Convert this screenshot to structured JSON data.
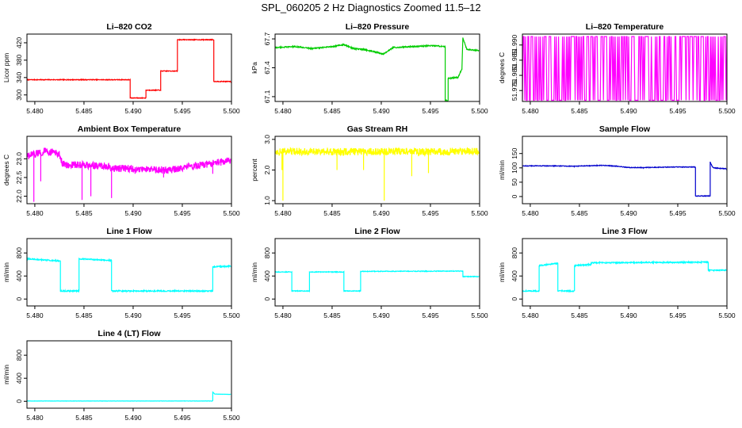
{
  "figure_title": "SPL_060205  2 Hz Diagnostics Zoomed 11.5–12",
  "chart_data": [
    {
      "type": "line",
      "title": "Li–820 CO2",
      "ylabel": "Licor ppm",
      "color": "#ff0000",
      "xlim": [
        5.4792,
        5.5
      ],
      "ylim": [
        285,
        440
      ],
      "xticks": [
        5.48,
        5.485,
        5.49,
        5.495,
        5.5
      ],
      "xtick_labels": [
        "5.480",
        "5.485",
        "5.490",
        "5.495",
        "5.500"
      ],
      "yticks": [
        300,
        340,
        380,
        420
      ],
      "ytick_labels": [
        "300",
        "340",
        "380",
        "420"
      ],
      "noise": 0.8,
      "x": [
        5.4792,
        5.4897,
        5.4897,
        5.4913,
        5.4913,
        5.4928,
        5.4928,
        5.4945,
        5.4945,
        5.4982,
        5.4982,
        5.4999
      ],
      "y": [
        335,
        335,
        293,
        293,
        311,
        311,
        355,
        355,
        427,
        427,
        331,
        331
      ]
    },
    {
      "type": "line",
      "title": "Li–820 Pressure",
      "ylabel": "kPa",
      "color": "#00cc00",
      "xlim": [
        5.4792,
        5.5
      ],
      "ylim": [
        67.05,
        67.75
      ],
      "xticks": [
        5.48,
        5.485,
        5.49,
        5.495,
        5.5
      ],
      "xtick_labels": [
        "5.480",
        "5.485",
        "5.490",
        "5.495",
        "5.500"
      ],
      "yticks": [
        67.1,
        67.4,
        67.7
      ],
      "ytick_labels": [
        "67.1",
        "67.4",
        "67.7"
      ],
      "noise": 0.006,
      "x": [
        5.4792,
        5.4812,
        5.483,
        5.485,
        5.4862,
        5.4872,
        5.4882,
        5.4892,
        5.4902,
        5.4912,
        5.4932,
        5.4952,
        5.4965,
        5.4965,
        5.4968,
        5.4968,
        5.4978,
        5.4982,
        5.4983,
        5.4987,
        5.4999
      ],
      "y": [
        67.61,
        67.62,
        67.6,
        67.62,
        67.64,
        67.6,
        67.59,
        67.57,
        67.54,
        67.61,
        67.62,
        67.63,
        67.62,
        67.06,
        67.06,
        67.29,
        67.3,
        67.39,
        67.71,
        67.59,
        67.58
      ]
    },
    {
      "type": "line",
      "title": "Li–820 Temperature",
      "ylabel": "degrees C",
      "color": "#ff00ff",
      "xlim": [
        5.4792,
        5.5
      ],
      "ylim": [
        51.9714,
        51.9936
      ],
      "xticks": [
        5.48,
        5.485,
        5.49,
        5.495,
        5.5
      ],
      "xtick_labels": [
        "5.480",
        "5.485",
        "5.490",
        "5.495",
        "5.500"
      ],
      "yticks": [
        51.975,
        51.98,
        51.985,
        51.99
      ],
      "ytick_labels": [
        "51.975",
        "51.980",
        "51.985",
        "51.990"
      ],
      "binary": {
        "high": 51.9928,
        "low": 51.9718,
        "density": 0.5
      }
    },
    {
      "type": "line",
      "title": "Ambient Box Temperature",
      "ylabel": "degrees C",
      "color": "#ff00ff",
      "xlim": [
        5.4792,
        5.5
      ],
      "ylim": [
        21.8,
        23.6
      ],
      "xticks": [
        5.48,
        5.485,
        5.49,
        5.495,
        5.5
      ],
      "xtick_labels": [
        "5.480",
        "5.485",
        "5.490",
        "5.495",
        "5.500"
      ],
      "yticks": [
        22.0,
        22.5,
        23.0
      ],
      "ytick_labels": [
        "22.0",
        "22.5",
        "23.0"
      ],
      "noise": 0.1,
      "spikes": [
        [
          5.4799,
          21.85
        ],
        [
          5.4806,
          22.4
        ],
        [
          5.4848,
          21.9
        ],
        [
          5.4857,
          22.0
        ],
        [
          5.4878,
          21.95
        ],
        [
          5.4902,
          22.6
        ],
        [
          5.4931,
          22.5
        ],
        [
          5.4981,
          22.6
        ]
      ],
      "x": [
        5.4792,
        5.481,
        5.4825,
        5.4828,
        5.4875,
        5.4878,
        5.4935,
        5.4999
      ],
      "y": [
        23.05,
        23.2,
        23.15,
        22.85,
        22.8,
        22.75,
        22.7,
        22.95
      ]
    },
    {
      "type": "line",
      "title": "Gas Stream RH",
      "ylabel": "percent",
      "color": "#ffff00",
      "xlim": [
        5.4792,
        5.5
      ],
      "ylim": [
        0.9,
        3.1
      ],
      "xticks": [
        5.48,
        5.485,
        5.49,
        5.495,
        5.5
      ],
      "xtick_labels": [
        "5.480",
        "5.485",
        "5.490",
        "5.495",
        "5.500"
      ],
      "yticks": [
        1.0,
        2.0,
        3.0
      ],
      "ytick_labels": [
        "1.0",
        "2.0",
        "3.0"
      ],
      "noise": 0.12,
      "spikes": [
        [
          5.48,
          1.0
        ],
        [
          5.4799,
          2.0
        ],
        [
          5.4855,
          2.0
        ],
        [
          5.4882,
          2.0
        ],
        [
          5.4903,
          1.0
        ],
        [
          5.4931,
          1.8
        ],
        [
          5.4948,
          1.9
        ]
      ],
      "x": [
        5.4792,
        5.4999
      ],
      "y": [
        2.6,
        2.6
      ]
    },
    {
      "type": "line",
      "title": "Sample Flow",
      "ylabel": "ml/min",
      "color": "#0000cc",
      "xlim": [
        5.4792,
        5.5
      ],
      "ylim": [
        -25,
        210
      ],
      "xticks": [
        5.48,
        5.485,
        5.49,
        5.495,
        5.5
      ],
      "xtick_labels": [
        "5.480",
        "5.485",
        "5.490",
        "5.495",
        "5.500"
      ],
      "yticks": [
        0,
        50,
        100,
        150
      ],
      "ytick_labels": [
        "0",
        "50",
        "100",
        "150"
      ],
      "noise": 1.2,
      "x": [
        5.4792,
        5.4815,
        5.4845,
        5.4868,
        5.4872,
        5.4888,
        5.4898,
        5.4902,
        5.4915,
        5.4945,
        5.4955,
        5.4968,
        5.4968,
        5.4983,
        5.4983,
        5.4985,
        5.4986,
        5.4999
      ],
      "y": [
        107,
        107,
        106,
        108,
        109,
        106,
        102,
        101,
        101,
        103,
        103,
        103,
        2,
        2,
        120,
        105,
        100,
        97
      ]
    },
    {
      "type": "line",
      "title": "Line 1 Flow",
      "ylabel": "ml/min",
      "color": "#00ffff",
      "xlim": [
        5.4792,
        5.5
      ],
      "ylim": [
        -120,
        1050
      ],
      "xticks": [
        5.48,
        5.485,
        5.49,
        5.495,
        5.5
      ],
      "xtick_labels": [
        "5.480",
        "5.485",
        "5.490",
        "5.495",
        "5.500"
      ],
      "yticks": [
        0,
        400,
        800
      ],
      "ytick_labels": [
        "0",
        "400",
        "800"
      ],
      "noise": 10,
      "x": [
        5.4792,
        5.4826,
        5.4826,
        5.4845,
        5.4845,
        5.4878,
        5.4878,
        5.4981,
        5.4981,
        5.4999
      ],
      "y": [
        700,
        660,
        140,
        140,
        700,
        670,
        140,
        140,
        560,
        570
      ]
    },
    {
      "type": "line",
      "title": "Line 2 Flow",
      "ylabel": "ml/min",
      "color": "#00ffff",
      "xlim": [
        5.4792,
        5.5
      ],
      "ylim": [
        -120,
        1050
      ],
      "xticks": [
        5.48,
        5.485,
        5.49,
        5.495,
        5.5
      ],
      "xtick_labels": [
        "5.480",
        "5.485",
        "5.490",
        "5.495",
        "5.500"
      ],
      "yticks": [
        0,
        400,
        800
      ],
      "ytick_labels": [
        "0",
        "400",
        "800"
      ],
      "noise": 6,
      "x": [
        5.4792,
        5.4809,
        5.4809,
        5.4827,
        5.4827,
        5.4862,
        5.4862,
        5.4879,
        5.4879,
        5.4983,
        5.4983,
        5.4999
      ],
      "y": [
        470,
        470,
        140,
        140,
        470,
        470,
        140,
        140,
        480,
        485,
        390,
        390
      ]
    },
    {
      "type": "line",
      "title": "Line 3 Flow",
      "ylabel": "ml/min",
      "color": "#00ffff",
      "xlim": [
        5.4792,
        5.5
      ],
      "ylim": [
        -120,
        1050
      ],
      "xticks": [
        5.48,
        5.485,
        5.49,
        5.495,
        5.5
      ],
      "xtick_labels": [
        "5.480",
        "5.485",
        "5.490",
        "5.495",
        "5.500"
      ],
      "yticks": [
        0,
        400,
        800
      ],
      "ytick_labels": [
        "0",
        "400",
        "800"
      ],
      "noise": 10,
      "x": [
        5.4792,
        5.4809,
        5.4809,
        5.4828,
        5.4828,
        5.4845,
        5.4845,
        5.4862,
        5.4862,
        5.4981,
        5.4981,
        5.4999
      ],
      "y": [
        140,
        140,
        580,
        620,
        140,
        140,
        580,
        600,
        630,
        640,
        500,
        500
      ]
    },
    {
      "type": "line",
      "title": "Line 4 (LT) Flow",
      "ylabel": "ml/min",
      "color": "#00ffff",
      "xlim": [
        5.4792,
        5.5
      ],
      "ylim": [
        -120,
        1050
      ],
      "xticks": [
        5.48,
        5.485,
        5.49,
        5.495,
        5.5
      ],
      "xtick_labels": [
        "5.480",
        "5.485",
        "5.490",
        "5.495",
        "5.500"
      ],
      "yticks": [
        0,
        400,
        800
      ],
      "ytick_labels": [
        "0",
        "400",
        "800"
      ],
      "noise": 2,
      "x": [
        5.4792,
        5.4981,
        5.4981,
        5.4983,
        5.4999
      ],
      "y": [
        5,
        5,
        160,
        125,
        120
      ]
    }
  ]
}
